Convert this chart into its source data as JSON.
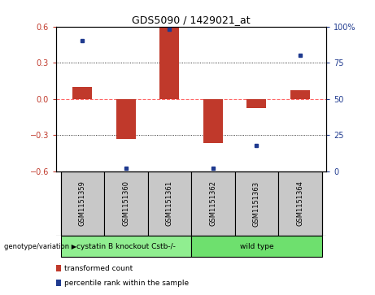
{
  "title": "GDS5090 / 1429021_at",
  "samples": [
    "GSM1151359",
    "GSM1151360",
    "GSM1151361",
    "GSM1151362",
    "GSM1151363",
    "GSM1151364"
  ],
  "bar_values": [
    0.1,
    -0.33,
    0.6,
    -0.37,
    -0.08,
    0.07
  ],
  "percentile_values": [
    90,
    2,
    98,
    2,
    18,
    80
  ],
  "bar_color": "#C0392B",
  "dot_color": "#1F3A8F",
  "ylim_left": [
    -0.6,
    0.6
  ],
  "ylim_right": [
    0,
    100
  ],
  "yticks_left": [
    -0.6,
    -0.3,
    0.0,
    0.3,
    0.6
  ],
  "yticks_right": [
    0,
    25,
    50,
    75,
    100
  ],
  "ytick_labels_right": [
    "0",
    "25",
    "50",
    "75",
    "100%"
  ],
  "groups": [
    {
      "label": "cystatin B knockout Cstb-/-",
      "samples": [
        0,
        1,
        2
      ],
      "color": "#90EE90"
    },
    {
      "label": "wild type",
      "samples": [
        3,
        4,
        5
      ],
      "color": "#6EE06E"
    }
  ],
  "group_row_label": "genotype/variation",
  "legend_bar_label": "transformed count",
  "legend_dot_label": "percentile rank within the sample",
  "zero_line_color": "#FF6666",
  "background_color": "#FFFFFF",
  "sample_box_color": "#C8C8C8",
  "bar_width": 0.45
}
